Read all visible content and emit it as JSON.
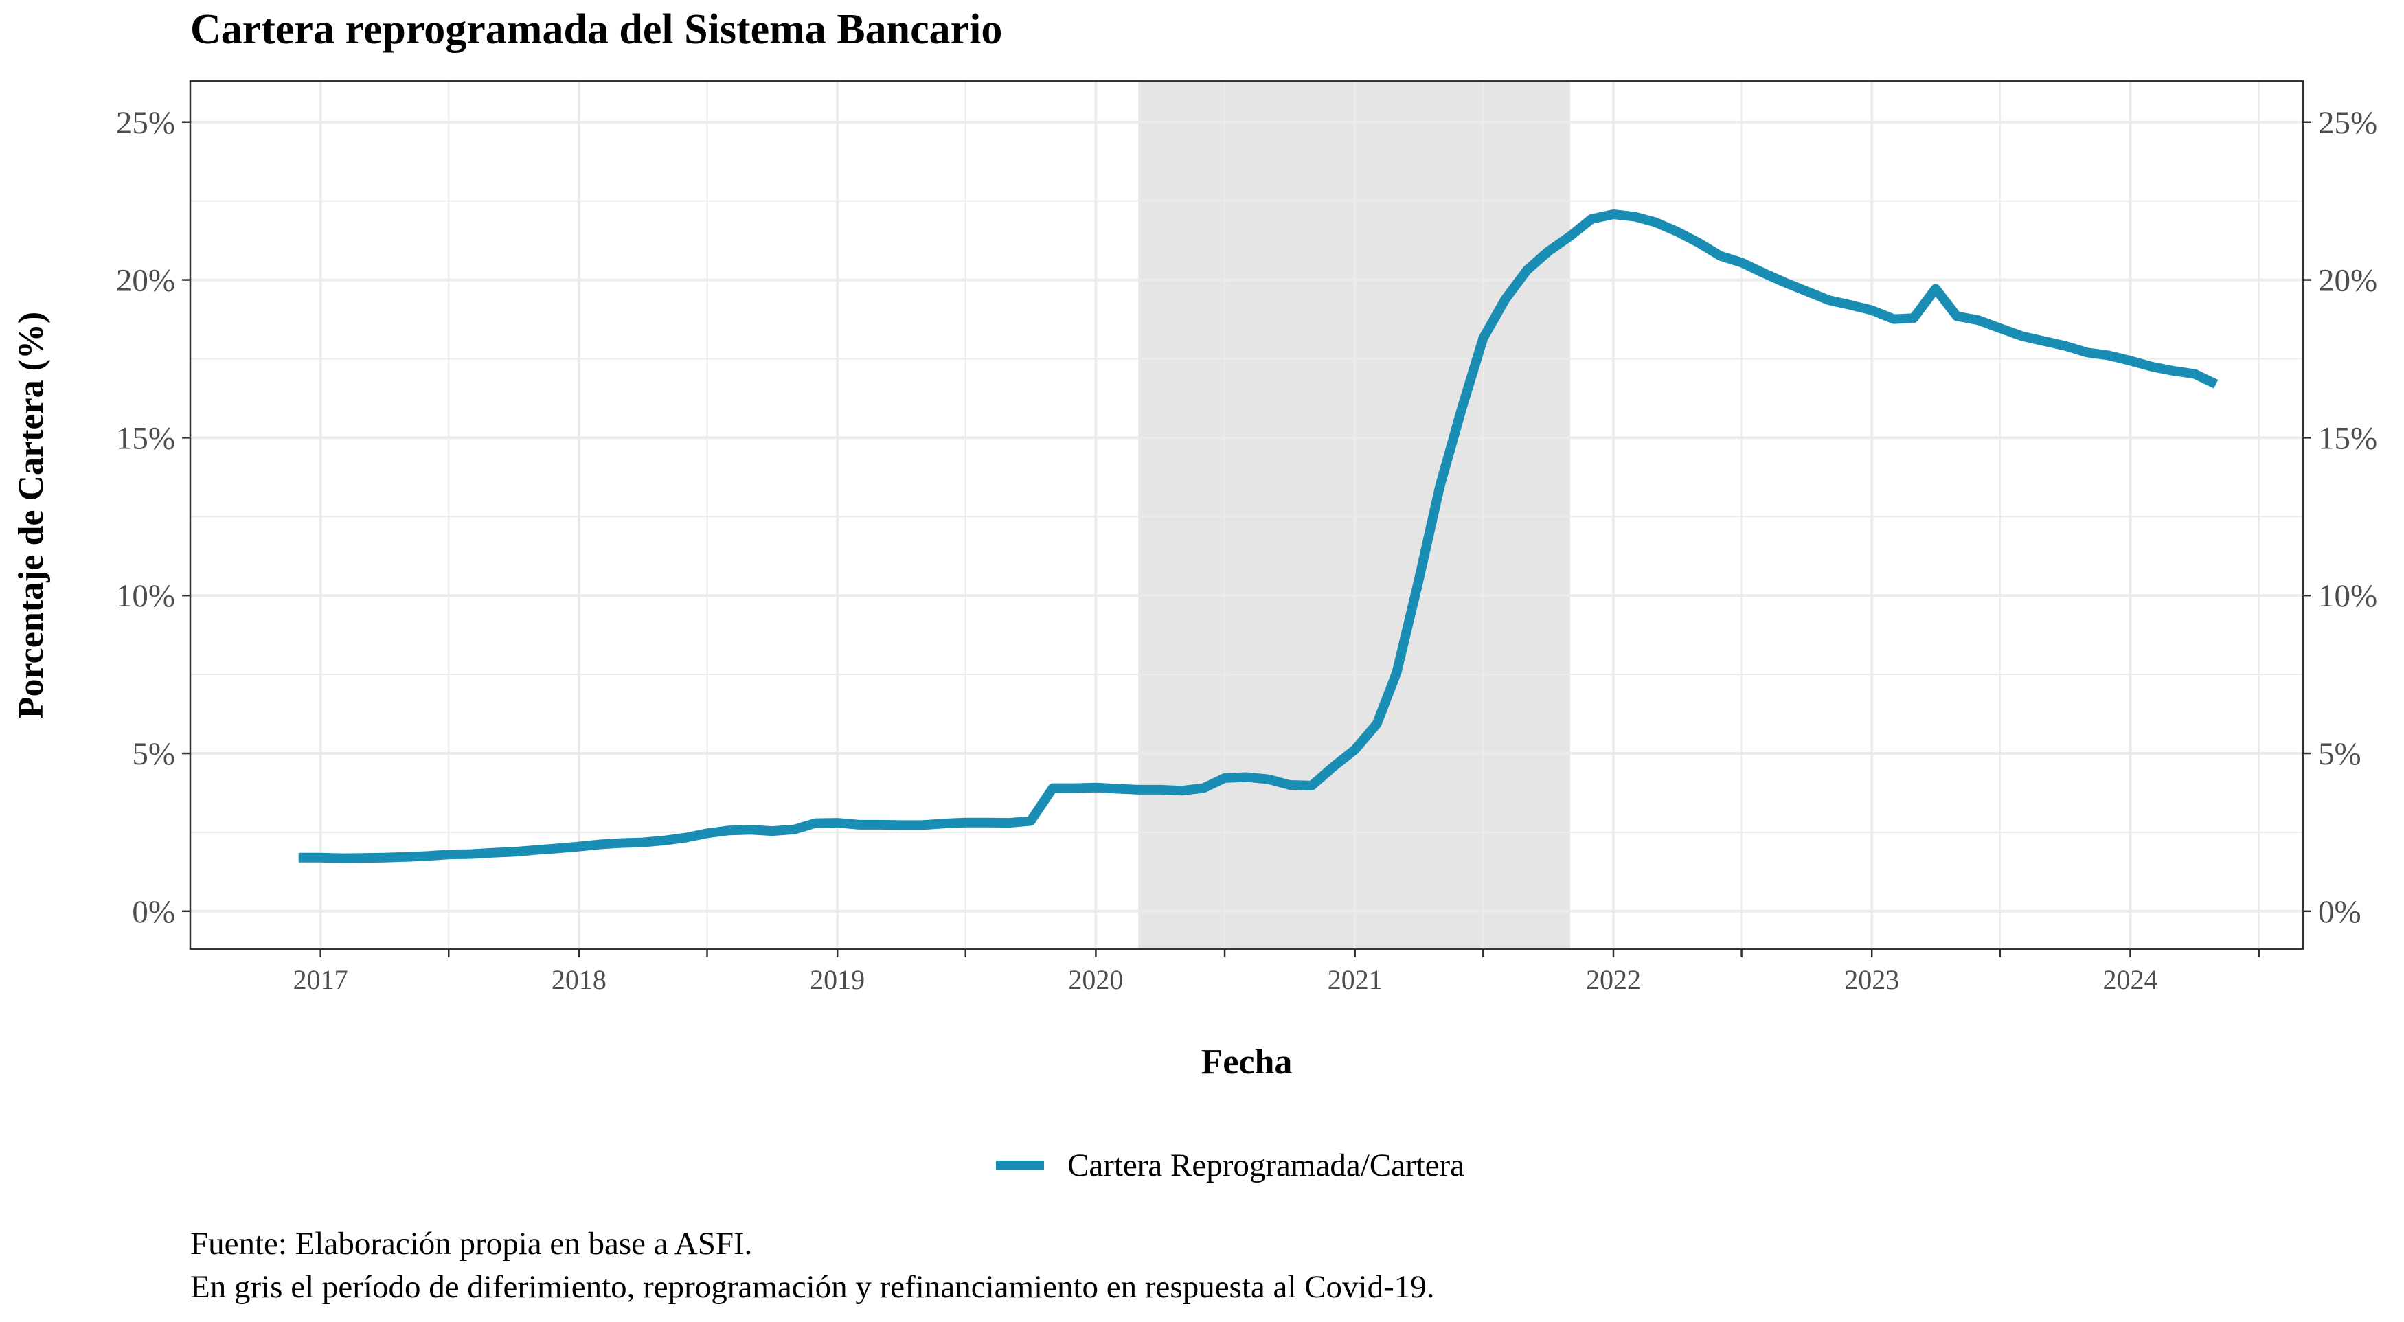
{
  "chart_data": {
    "type": "line",
    "title": "Cartera reprogramada del Sistema Bancario",
    "xlabel": "Fecha",
    "ylabel": "Porcentaje de Cartera (%)",
    "ylim": [
      -0.012,
      0.263
    ],
    "xlim": [
      "2016-07-01",
      "2024-09-01"
    ],
    "y_ticks": [
      0,
      0.05,
      0.1,
      0.15,
      0.2,
      0.25
    ],
    "y_tick_labels": [
      "0%",
      "5%",
      "10%",
      "15%",
      "20%",
      "25%"
    ],
    "x_ticks": [
      "2017-01-01",
      "2018-01-01",
      "2019-01-01",
      "2020-01-01",
      "2021-01-01",
      "2022-01-01",
      "2023-01-01",
      "2024-01-01"
    ],
    "x_tick_labels": [
      "2017",
      "2018",
      "2019",
      "2020",
      "2021",
      "2022",
      "2023",
      "2024"
    ],
    "secondary_y_axis": true,
    "grid": true,
    "legend_position": "bottom",
    "shaded_period": {
      "start": "2020-03-01",
      "end": "2021-11-01",
      "color": "#e5e5e5"
    },
    "series": [
      {
        "name": "Cartera Reprogramada/Cartera",
        "color": "#1a8db5",
        "points": [
          [
            "2016-12-01",
            0.017
          ],
          [
            "2017-01-01",
            0.017
          ],
          [
            "2017-02-01",
            0.0168
          ],
          [
            "2017-03-01",
            0.0169
          ],
          [
            "2017-04-01",
            0.017
          ],
          [
            "2017-05-01",
            0.0172
          ],
          [
            "2017-06-01",
            0.0175
          ],
          [
            "2017-07-01",
            0.018
          ],
          [
            "2017-08-01",
            0.0181
          ],
          [
            "2017-09-01",
            0.0185
          ],
          [
            "2017-10-01",
            0.0188
          ],
          [
            "2017-11-01",
            0.0194
          ],
          [
            "2017-12-01",
            0.0199
          ],
          [
            "2018-01-01",
            0.0205
          ],
          [
            "2018-02-01",
            0.0212
          ],
          [
            "2018-03-01",
            0.0216
          ],
          [
            "2018-04-01",
            0.0218
          ],
          [
            "2018-05-01",
            0.0224
          ],
          [
            "2018-06-01",
            0.0233
          ],
          [
            "2018-07-01",
            0.0247
          ],
          [
            "2018-08-01",
            0.0256
          ],
          [
            "2018-09-01",
            0.0258
          ],
          [
            "2018-10-01",
            0.0254
          ],
          [
            "2018-11-01",
            0.0259
          ],
          [
            "2018-12-01",
            0.0279
          ],
          [
            "2019-01-01",
            0.028
          ],
          [
            "2019-02-01",
            0.0274
          ],
          [
            "2019-03-01",
            0.0274
          ],
          [
            "2019-04-01",
            0.0273
          ],
          [
            "2019-05-01",
            0.0273
          ],
          [
            "2019-06-01",
            0.0278
          ],
          [
            "2019-07-01",
            0.0281
          ],
          [
            "2019-08-01",
            0.0281
          ],
          [
            "2019-09-01",
            0.028
          ],
          [
            "2019-10-01",
            0.0286
          ],
          [
            "2019-11-01",
            0.039
          ],
          [
            "2019-12-01",
            0.039
          ],
          [
            "2020-01-01",
            0.0392
          ],
          [
            "2020-02-01",
            0.0388
          ],
          [
            "2020-03-01",
            0.0385
          ],
          [
            "2020-04-01",
            0.0385
          ],
          [
            "2020-05-01",
            0.0382
          ],
          [
            "2020-06-01",
            0.039
          ],
          [
            "2020-07-01",
            0.0422
          ],
          [
            "2020-08-01",
            0.0425
          ],
          [
            "2020-09-01",
            0.0418
          ],
          [
            "2020-10-01",
            0.04
          ],
          [
            "2020-11-01",
            0.0398
          ],
          [
            "2020-12-01",
            0.0457
          ],
          [
            "2021-01-01",
            0.0512
          ],
          [
            "2021-02-01",
            0.0594
          ],
          [
            "2021-03-01",
            0.0757
          ],
          [
            "2021-04-01",
            0.1048
          ],
          [
            "2021-05-01",
            0.1347
          ],
          [
            "2021-06-01",
            0.1594
          ],
          [
            "2021-07-01",
            0.1815
          ],
          [
            "2021-08-01",
            0.1938
          ],
          [
            "2021-09-01",
            0.2031
          ],
          [
            "2021-10-01",
            0.209
          ],
          [
            "2021-11-01",
            0.2139
          ],
          [
            "2021-12-01",
            0.2193
          ],
          [
            "2022-01-01",
            0.2208
          ],
          [
            "2022-02-01",
            0.22
          ],
          [
            "2022-03-01",
            0.2183
          ],
          [
            "2022-04-01",
            0.2153
          ],
          [
            "2022-05-01",
            0.2118
          ],
          [
            "2022-06-01",
            0.2076
          ],
          [
            "2022-07-01",
            0.2055
          ],
          [
            "2022-08-01",
            0.2022
          ],
          [
            "2022-09-01",
            0.1991
          ],
          [
            "2022-10-01",
            0.1964
          ],
          [
            "2022-11-01",
            0.1936
          ],
          [
            "2022-12-01",
            0.1921
          ],
          [
            "2023-01-01",
            0.1904
          ],
          [
            "2023-02-01",
            0.1876
          ],
          [
            "2023-03-01",
            0.1879
          ],
          [
            "2023-04-01",
            0.1972
          ],
          [
            "2023-05-01",
            0.1885
          ],
          [
            "2023-06-01",
            0.1872
          ],
          [
            "2023-07-01",
            0.1847
          ],
          [
            "2023-08-01",
            0.1822
          ],
          [
            "2023-09-01",
            0.1806
          ],
          [
            "2023-10-01",
            0.1791
          ],
          [
            "2023-11-01",
            0.177
          ],
          [
            "2023-12-01",
            0.1761
          ],
          [
            "2024-01-01",
            0.1744
          ],
          [
            "2024-02-01",
            0.1725
          ],
          [
            "2024-03-01",
            0.1712
          ],
          [
            "2024-04-01",
            0.1702
          ],
          [
            "2024-05-01",
            0.167
          ]
        ]
      }
    ]
  },
  "caption": {
    "line1": "Fuente: Elaboración propia en base a ASFI.",
    "line2": "En gris el período de diferimiento, reprogramación y refinanciamiento en respuesta al Covid-19."
  }
}
